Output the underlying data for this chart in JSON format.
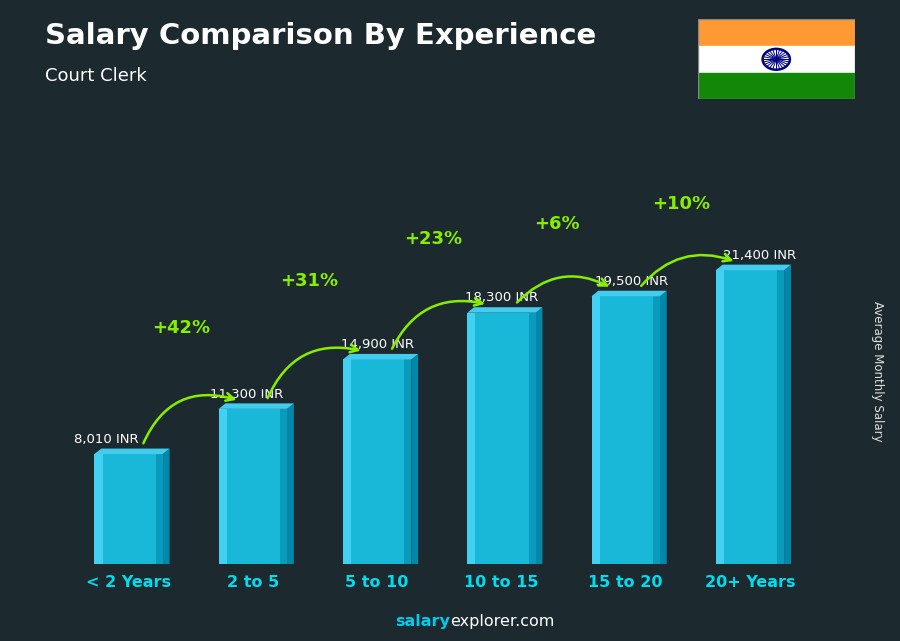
{
  "title": "Salary Comparison By Experience",
  "subtitle": "Court Clerk",
  "categories": [
    "< 2 Years",
    "2 to 5",
    "5 to 10",
    "10 to 15",
    "15 to 20",
    "20+ Years"
  ],
  "values": [
    8010,
    11300,
    14900,
    18300,
    19500,
    21400
  ],
  "value_labels": [
    "8,010 INR",
    "11,300 INR",
    "14,900 INR",
    "18,300 INR",
    "19,500 INR",
    "21,400 INR"
  ],
  "pct_changes": [
    "+42%",
    "+31%",
    "+23%",
    "+6%",
    "+10%"
  ],
  "bar_face_color": "#1ab8d8",
  "bar_highlight_color": "#55ddff",
  "bar_shadow_color": "#0088aa",
  "bar_top_color": "#44ccee",
  "bg_color": "#1c2a30",
  "title_color": "#ffffff",
  "subtitle_color": "#ffffff",
  "value_label_color": "#ffffff",
  "pct_color": "#88ee00",
  "arrow_color": "#88ee00",
  "xlabel_color": "#00ddee",
  "ylabel": "Average Monthly Salary",
  "footer_salary_color": "#00ccee",
  "footer_explorer_color": "#ffffff",
  "ylim": [
    0,
    28000
  ],
  "bar_width": 0.55,
  "x_positions": [
    0,
    1,
    2,
    3,
    4,
    5
  ],
  "flag_saffron": "#FF9933",
  "flag_white": "#FFFFFF",
  "flag_green": "#138808",
  "flag_navy": "#000080"
}
